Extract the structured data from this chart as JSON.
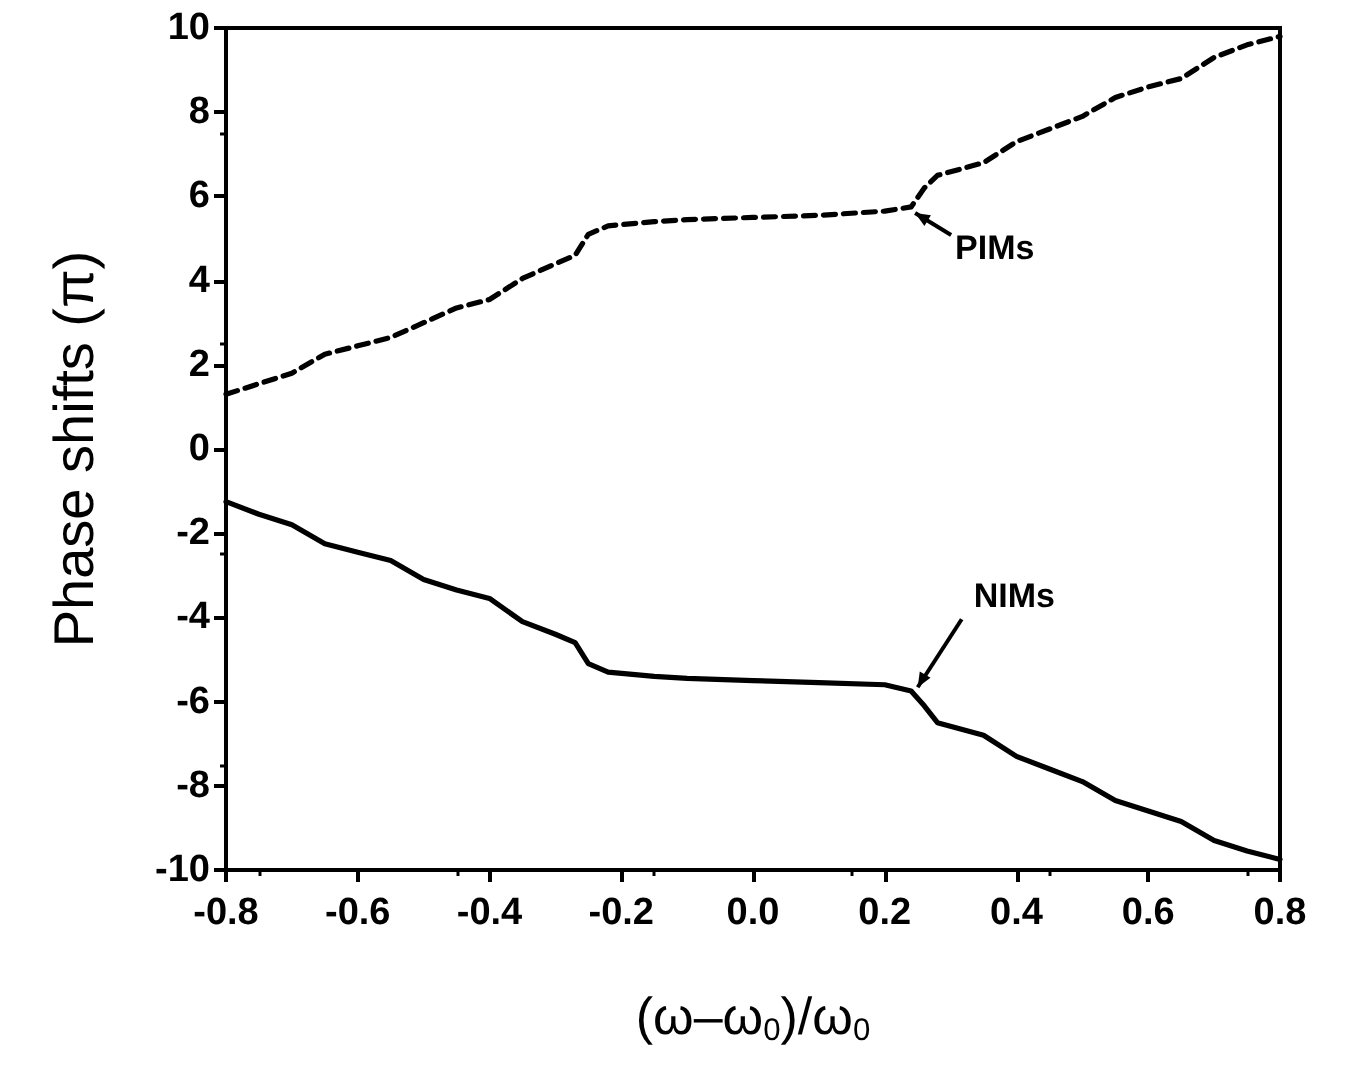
{
  "chart_data": {
    "type": "line",
    "xlabel": "(ω–ω$_{0}$)/ω$_{0}$",
    "ylabel": "Phase shifts (π)",
    "x": [
      -0.8,
      -0.75,
      -0.7,
      -0.65,
      -0.6,
      -0.55,
      -0.5,
      -0.45,
      -0.4,
      -0.35,
      -0.3,
      -0.27,
      -0.25,
      -0.22,
      -0.15,
      -0.1,
      0,
      0.1,
      0.2,
      0.24,
      0.26,
      0.28,
      0.35,
      0.4,
      0.45,
      0.5,
      0.55,
      0.6,
      0.65,
      0.7,
      0.75,
      0.8
    ],
    "series": [
      {
        "color": "#000000",
        "line_style": "dashed",
        "values": [
          1.3,
          1.55,
          1.8,
          2.25,
          2.45,
          2.65,
          3.0,
          3.35,
          3.55,
          4.05,
          4.4,
          4.6,
          5.1,
          5.3,
          5.4,
          5.45,
          5.5,
          5.55,
          5.65,
          5.75,
          6.2,
          6.5,
          6.8,
          7.3,
          7.6,
          7.9,
          8.35,
          8.6,
          8.8,
          9.3,
          9.6,
          9.8
        ]
      },
      {
        "color": "#000000",
        "line_style": "solid",
        "values": [
          -1.25,
          -1.55,
          -1.8,
          -2.25,
          -2.45,
          -2.65,
          -3.1,
          -3.35,
          -3.55,
          -4.1,
          -4.4,
          -4.6,
          -5.1,
          -5.3,
          -5.4,
          -5.45,
          -5.5,
          -5.55,
          -5.6,
          -5.75,
          -6.1,
          -6.5,
          -6.8,
          -7.3,
          -7.6,
          -7.9,
          -8.35,
          -8.6,
          -8.85,
          -9.3,
          -9.55,
          -9.75
        ]
      }
    ],
    "xlim": [
      -0.8,
      0.8
    ],
    "xticks": [
      {
        "value": -0.8,
        "label": "-0.8"
      },
      {
        "value": -0.6,
        "label": "-0.6"
      },
      {
        "value": -0.4,
        "label": "-0.4"
      },
      {
        "value": -0.2,
        "label": "-0.2"
      },
      {
        "value": 0,
        "label": "0.0"
      },
      {
        "value": 0.2,
        "label": "0.2"
      },
      {
        "value": 0.4,
        "label": "0.4"
      },
      {
        "value": 0.6,
        "label": "0.6"
      },
      {
        "value": 0.8,
        "label": "0.8"
      }
    ],
    "ylim": [
      -10,
      10
    ],
    "yticks": [
      -10,
      -8,
      -6,
      -4,
      -2,
      0,
      2,
      4,
      6,
      8,
      10
    ],
    "marker": "none",
    "annotations": [
      {
        "text": "PIMs",
        "x": 0.24,
        "y": 5.75
      },
      {
        "text": "NIMs",
        "x": 0.25,
        "y": -5.85
      }
    ]
  }
}
